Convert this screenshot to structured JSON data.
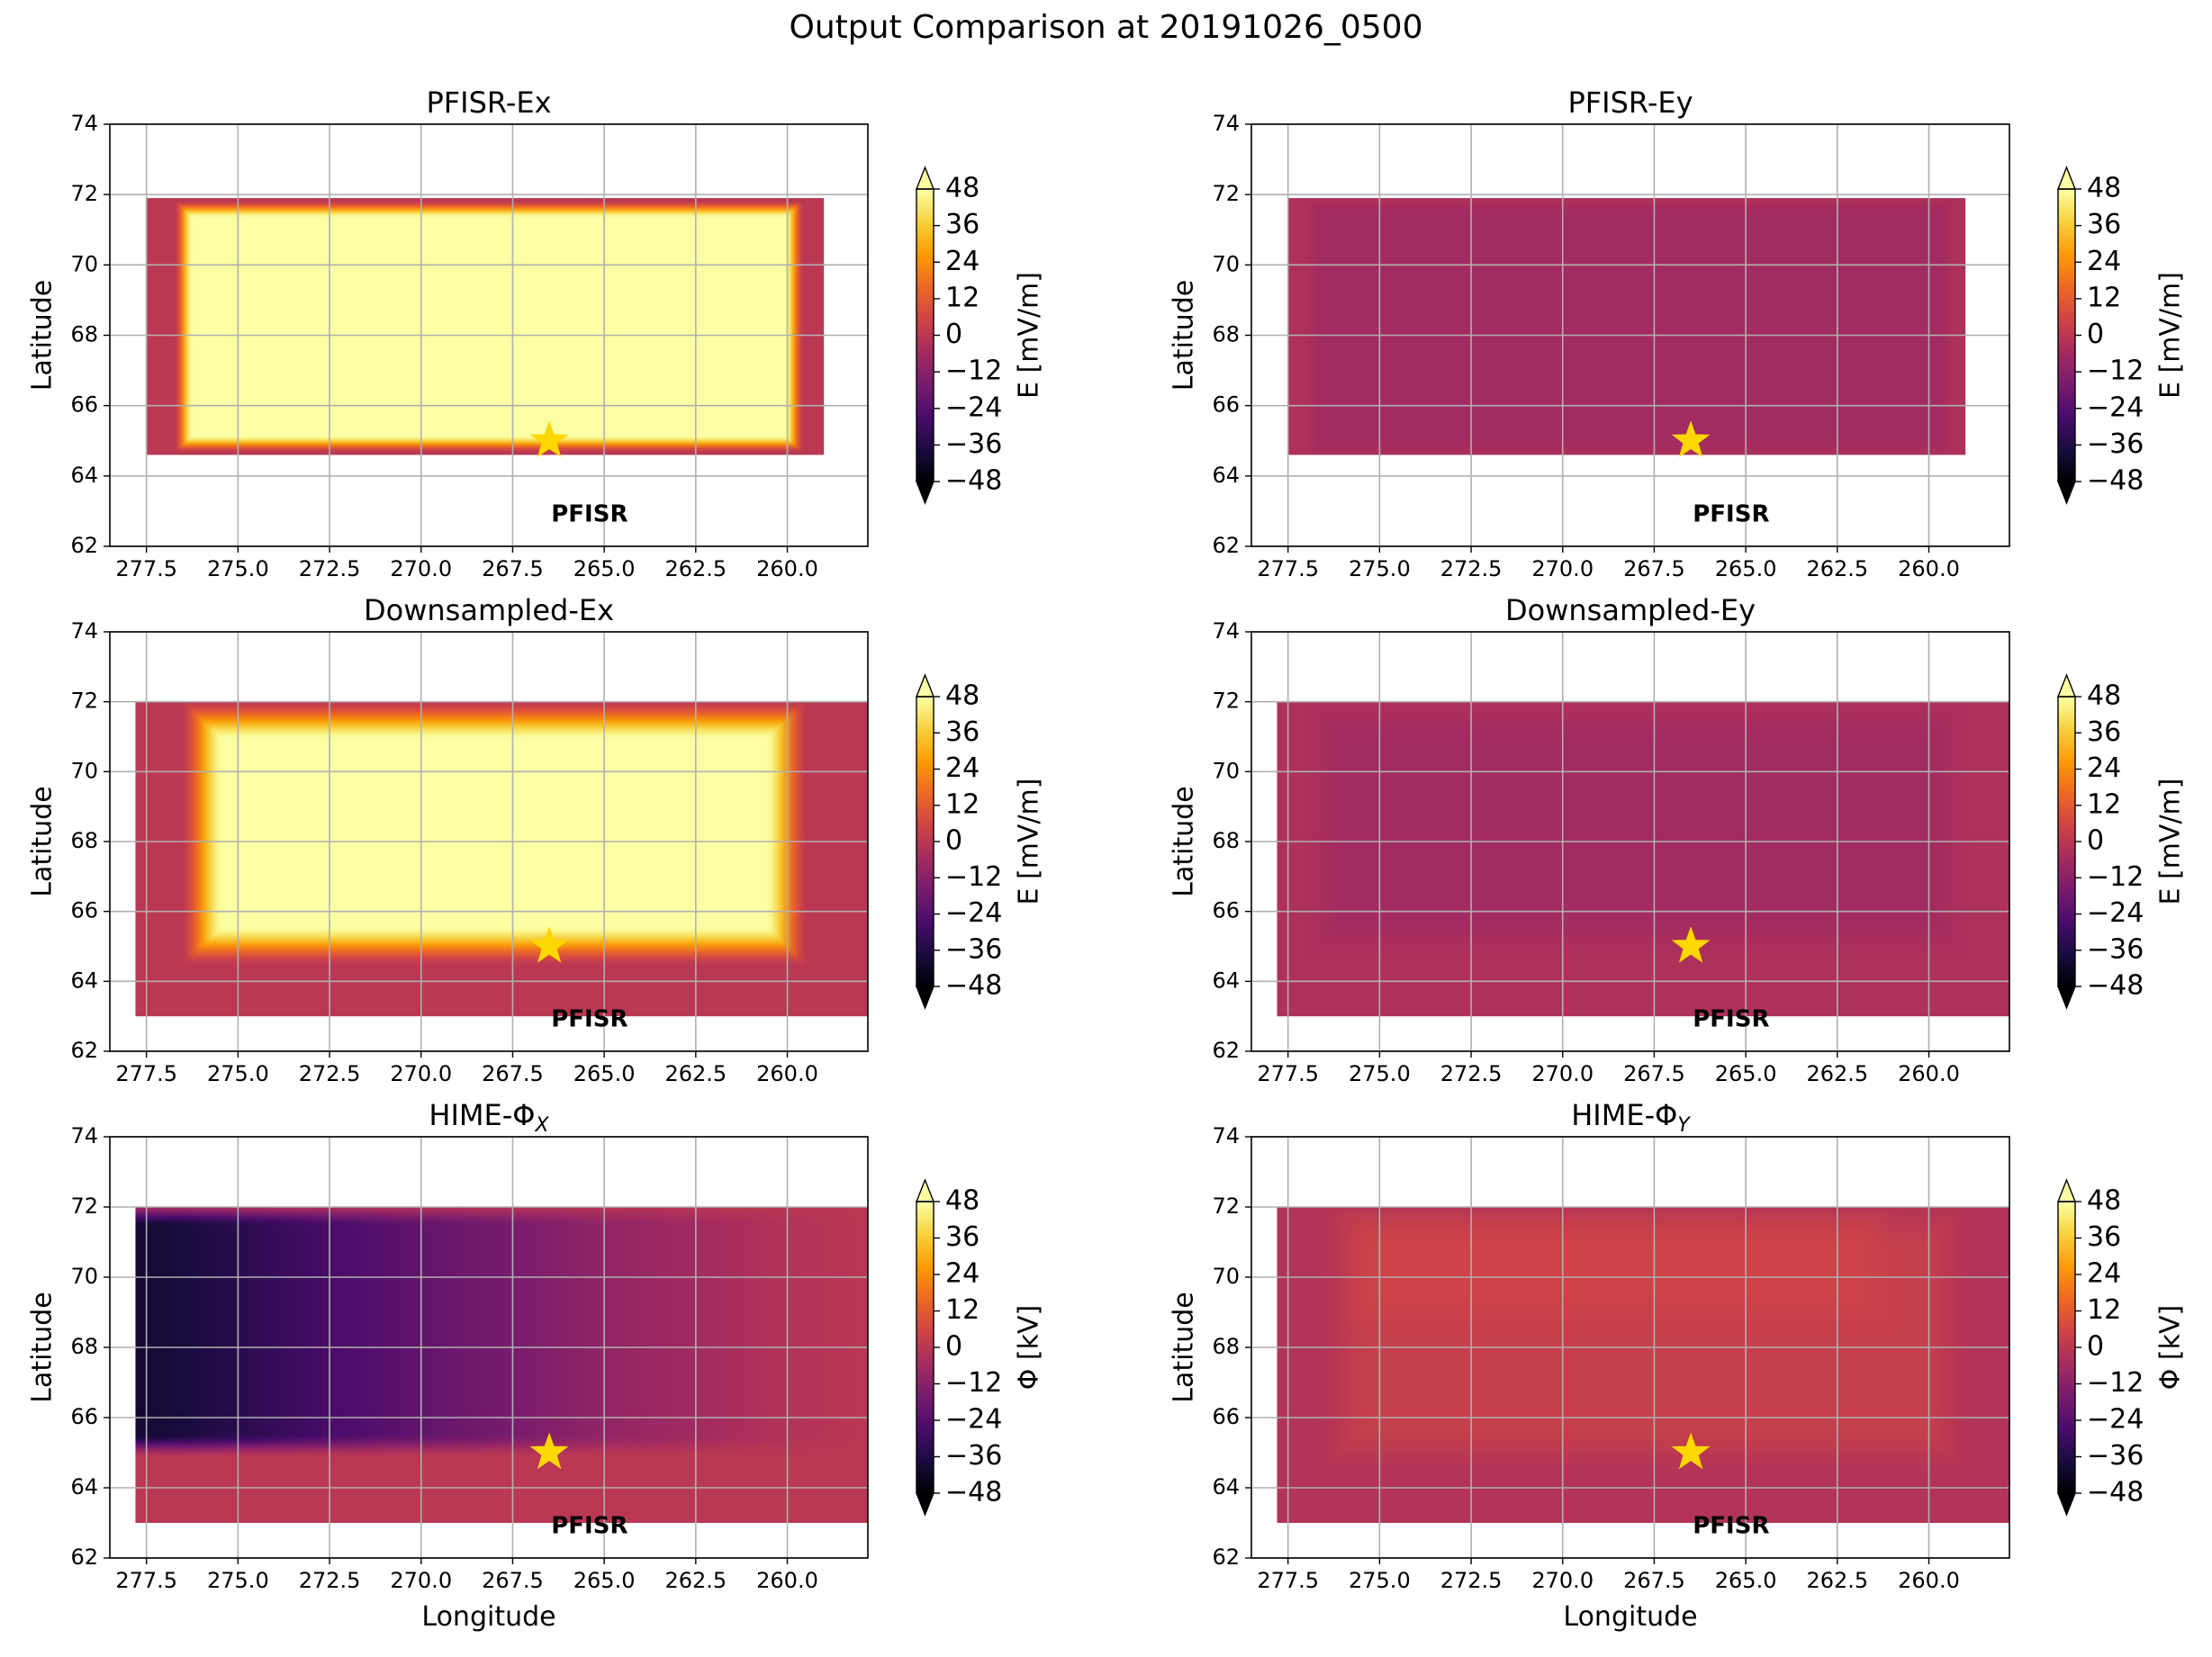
{
  "figure": {
    "title": "Output Comparison at 20191026_0500"
  },
  "colors": {
    "grid": "#b0b0b0",
    "star": "#ffd700",
    "inferno": [
      "#000004",
      "#1b0c41",
      "#4a0c6b",
      "#781c6d",
      "#a52c60",
      "#cf4446",
      "#ed6925",
      "#fb9b06",
      "#f7d13d",
      "#fcffa4"
    ]
  },
  "chart_data": [
    {
      "type": "heatmap",
      "title": "PFISR-Ex",
      "xlabel": "",
      "ylabel": "Latitude",
      "xlim": [
        278.5,
        257.8
      ],
      "ylim": [
        62,
        74
      ],
      "xticks": [
        "277.5",
        "275.0",
        "272.5",
        "270.0",
        "267.5",
        "265.0",
        "262.5",
        "260.0"
      ],
      "yticks": [
        "62",
        "64",
        "66",
        "68",
        "70",
        "72",
        "74"
      ],
      "grid": true,
      "colorbar": {
        "label": "E [mV/m]",
        "range": [
          -48,
          48
        ],
        "ticks": [
          "−48",
          "−36",
          "−24",
          "−12",
          "0",
          "12",
          "24",
          "36",
          "48"
        ],
        "extend": "both"
      },
      "field": {
        "extent": {
          "lon": [
            277.5,
            259.0
          ],
          "lat": [
            64.6,
            71.9
          ]
        },
        "background_value": 0,
        "core": {
          "lon": [
            276.5,
            259.8
          ],
          "lat": [
            64.9,
            71.6
          ],
          "value": 48
        },
        "edge_blur": 0.25
      },
      "marker": {
        "label": "PFISR",
        "lon": 266.5,
        "lat": 65.0
      }
    },
    {
      "type": "heatmap",
      "title": "PFISR-Ey",
      "xlabel": "",
      "ylabel": "Latitude",
      "xlim": [
        278.5,
        257.8
      ],
      "ylim": [
        62,
        74
      ],
      "xticks": [
        "277.5",
        "275.0",
        "272.5",
        "270.0",
        "267.5",
        "265.0",
        "262.5",
        "260.0"
      ],
      "yticks": [
        "62",
        "64",
        "66",
        "68",
        "70",
        "72",
        "74"
      ],
      "grid": true,
      "colorbar": {
        "label": "E [mV/m]",
        "range": [
          -48,
          48
        ],
        "ticks": [
          "−48",
          "−36",
          "−24",
          "−12",
          "0",
          "12",
          "24",
          "36",
          "48"
        ],
        "extend": "both"
      },
      "field": {
        "extent": {
          "lon": [
            277.5,
            259.0
          ],
          "lat": [
            64.6,
            71.9
          ]
        },
        "background_value": -3,
        "core": {
          "lon": [
            276.8,
            259.5
          ],
          "lat": [
            64.8,
            71.7
          ],
          "value": -6
        },
        "edge_blur": 0.3
      },
      "marker": {
        "label": "PFISR",
        "lon": 266.5,
        "lat": 65.0
      }
    },
    {
      "type": "heatmap",
      "title": "Downsampled-Ex",
      "xlabel": "",
      "ylabel": "Latitude",
      "xlim": [
        278.5,
        257.8
      ],
      "ylim": [
        62,
        74
      ],
      "xticks": [
        "277.5",
        "275.0",
        "272.5",
        "270.0",
        "267.5",
        "265.0",
        "262.5",
        "260.0"
      ],
      "yticks": [
        "62",
        "64",
        "66",
        "68",
        "70",
        "72",
        "74"
      ],
      "grid": true,
      "colorbar": {
        "label": "E [mV/m]",
        "range": [
          -48,
          48
        ],
        "ticks": [
          "−48",
          "−36",
          "−24",
          "−12",
          "0",
          "12",
          "24",
          "36",
          "48"
        ],
        "extend": "both"
      },
      "field": {
        "extent": {
          "lon": [
            277.8,
            257.8
          ],
          "lat": [
            63.0,
            72.0
          ]
        },
        "background_value": 0,
        "core": {
          "lon": [
            276.0,
            260.0
          ],
          "lat": [
            65.0,
            71.5
          ],
          "value": 48
        },
        "edge_blur": 0.6
      },
      "marker": {
        "label": "PFISR",
        "lon": 266.5,
        "lat": 65.0
      }
    },
    {
      "type": "heatmap",
      "title": "Downsampled-Ey",
      "xlabel": "",
      "ylabel": "Latitude",
      "xlim": [
        278.5,
        257.8
      ],
      "ylim": [
        62,
        74
      ],
      "xticks": [
        "277.5",
        "275.0",
        "272.5",
        "270.0",
        "267.5",
        "265.0",
        "262.5",
        "260.0"
      ],
      "yticks": [
        "62",
        "64",
        "66",
        "68",
        "70",
        "72",
        "74"
      ],
      "grid": true,
      "colorbar": {
        "label": "E [mV/m]",
        "range": [
          -48,
          48
        ],
        "ticks": [
          "−48",
          "−36",
          "−24",
          "−12",
          "0",
          "12",
          "24",
          "36",
          "48"
        ],
        "extend": "both"
      },
      "field": {
        "extent": {
          "lon": [
            277.8,
            257.8
          ],
          "lat": [
            63.0,
            72.0
          ]
        },
        "background_value": -3,
        "core": {
          "lon": [
            276.5,
            259.5
          ],
          "lat": [
            65.2,
            71.5
          ],
          "value": -6
        },
        "edge_blur": 0.8
      },
      "marker": {
        "label": "PFISR",
        "lon": 266.5,
        "lat": 65.0
      }
    },
    {
      "type": "heatmap",
      "title": "HIME-Φ",
      "title_subscript": "X",
      "xlabel": "Longitude",
      "ylabel": "Latitude",
      "xlim": [
        278.5,
        257.8
      ],
      "ylim": [
        62,
        74
      ],
      "xticks": [
        "277.5",
        "275.0",
        "272.5",
        "270.0",
        "267.5",
        "265.0",
        "262.5",
        "260.0"
      ],
      "yticks": [
        "62",
        "64",
        "66",
        "68",
        "70",
        "72",
        "74"
      ],
      "grid": true,
      "colorbar": {
        "label": "Φ [kV]",
        "range": [
          -48,
          48
        ],
        "ticks": [
          "−48",
          "−36",
          "−24",
          "−12",
          "0",
          "12",
          "24",
          "36",
          "48"
        ],
        "extend": "both"
      },
      "field": {
        "extent": {
          "lon": [
            277.8,
            257.8
          ],
          "lat": [
            63.0,
            72.0
          ]
        },
        "background_value": 0,
        "gradient": {
          "lat_min": 65.2,
          "lat_max": 71.8,
          "lon_values": [
            [
              277.8,
              -40
            ],
            [
              276.5,
              -38
            ],
            [
              275.0,
              -34
            ],
            [
              272.5,
              -27
            ],
            [
              270.0,
              -21
            ],
            [
              267.5,
              -16
            ],
            [
              265.0,
              -10
            ],
            [
              262.5,
              -6
            ],
            [
              260.0,
              -2
            ],
            [
              257.8,
              0
            ]
          ]
        },
        "edge_blur": 0.35
      },
      "marker": {
        "label": "PFISR",
        "lon": 266.5,
        "lat": 65.0
      }
    },
    {
      "type": "heatmap",
      "title": "HIME-Φ",
      "title_subscript": "Y",
      "xlabel": "Longitude",
      "ylabel": "Latitude",
      "xlim": [
        278.5,
        257.8
      ],
      "ylim": [
        62,
        74
      ],
      "xticks": [
        "277.5",
        "275.0",
        "272.5",
        "270.0",
        "267.5",
        "265.0",
        "262.5",
        "260.0"
      ],
      "yticks": [
        "62",
        "64",
        "66",
        "68",
        "70",
        "72",
        "74"
      ],
      "grid": true,
      "colorbar": {
        "label": "Φ [kV]",
        "range": [
          -48,
          48
        ],
        "ticks": [
          "−48",
          "−36",
          "−24",
          "−12",
          "0",
          "12",
          "24",
          "36",
          "48"
        ],
        "extend": "both"
      },
      "field": {
        "extent": {
          "lon": [
            277.8,
            257.8
          ],
          "lat": [
            63.0,
            72.0
          ]
        },
        "background_value": -2,
        "core": {
          "lon": [
            276.0,
            259.5
          ],
          "lat": [
            65.0,
            71.5
          ],
          "value": 3
        },
        "inner": {
          "lon": [
            275.5,
            261.5
          ],
          "lat": [
            69.0,
            71.5
          ],
          "value": 5
        },
        "edge_blur": 0.8
      },
      "marker": {
        "label": "PFISR",
        "lon": 266.5,
        "lat": 65.0
      }
    }
  ]
}
